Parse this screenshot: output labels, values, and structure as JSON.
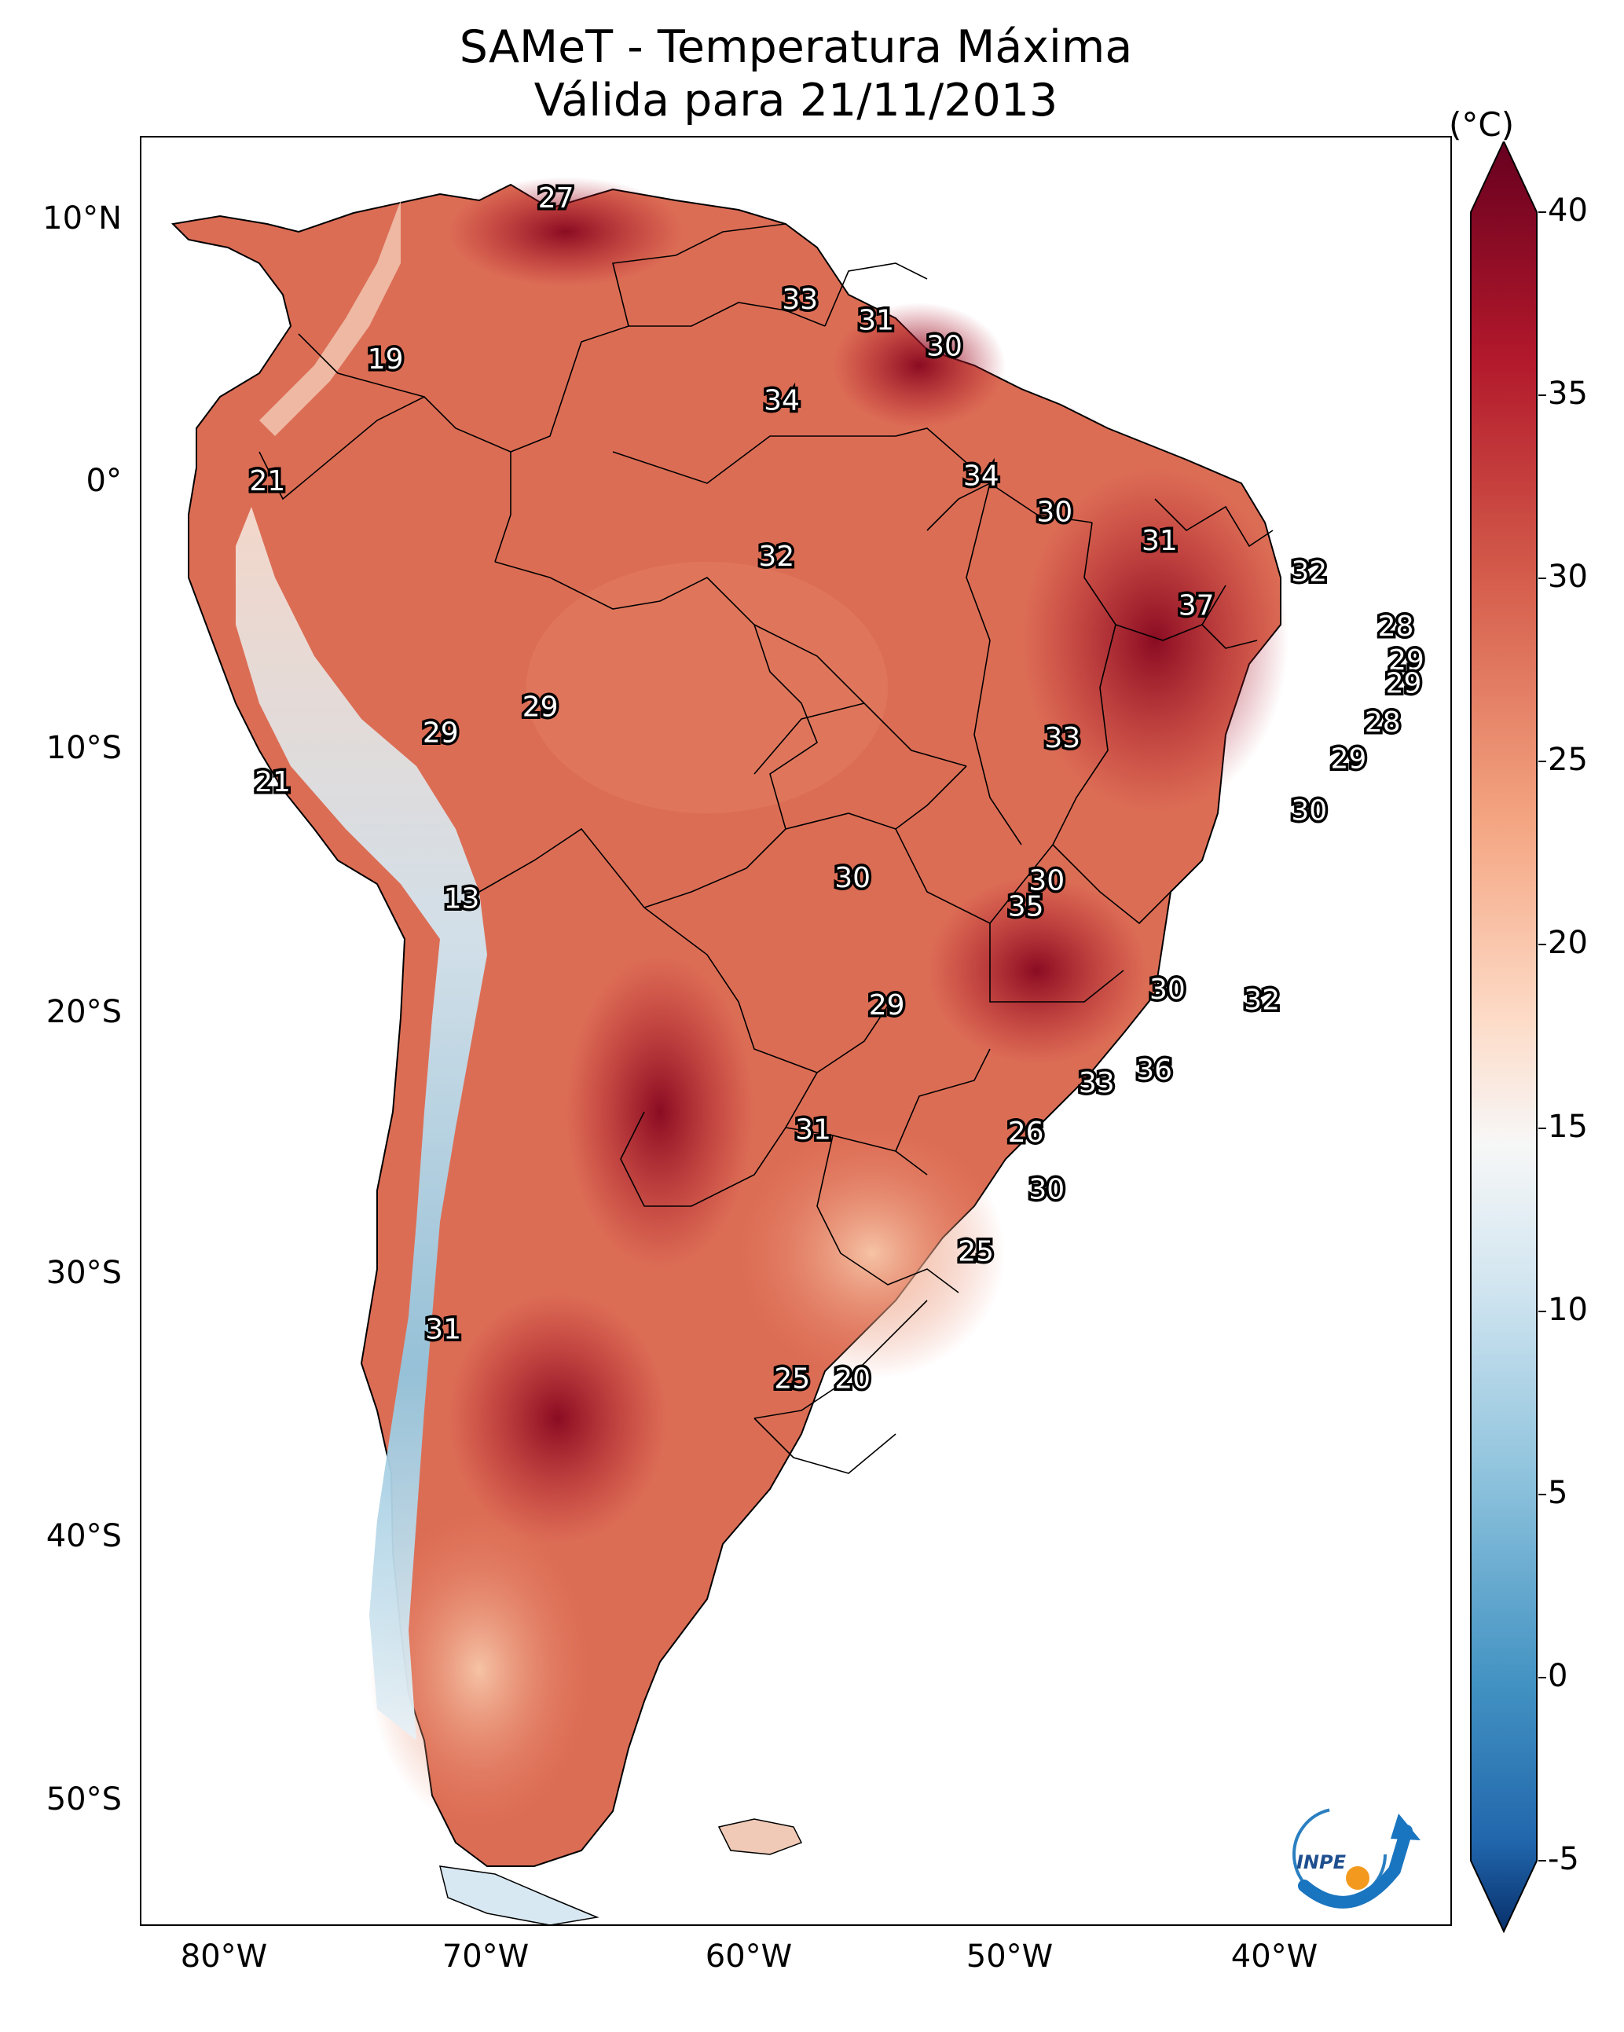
{
  "title": "SAMeT - Temperatura Máxima",
  "subtitle": "Válida para 21/11/2013",
  "colorbar": {
    "unit": "(°C)",
    "ticks": [
      "40",
      "35",
      "30",
      "25",
      "20",
      "15",
      "10",
      "5",
      "0",
      "-5"
    ],
    "min": -7,
    "max": 42,
    "colors": {
      "cold": "#08306b",
      "cool": "#4393c3",
      "neutral": "#f7f7f7",
      "warm": "#f4a582",
      "hot": "#b2182b",
      "hottest": "#67001f"
    }
  },
  "axes": {
    "lat_ticks": [
      "10°N",
      "0°",
      "10°S",
      "20°S",
      "30°S",
      "40°S",
      "50°S"
    ],
    "lon_ticks": [
      "80°W",
      "70°W",
      "60°W",
      "50°W",
      "40°W"
    ],
    "lon_range": [
      -83,
      -33
    ],
    "lat_range": [
      -56,
      13
    ]
  },
  "logo_text": "INPE",
  "station_labels": [
    {
      "lon": -67.2,
      "lat": 10.6,
      "value": 27
    },
    {
      "lon": -57.9,
      "lat": 6.7,
      "value": 33
    },
    {
      "lon": -55.0,
      "lat": 5.9,
      "value": 31
    },
    {
      "lon": -52.4,
      "lat": 4.9,
      "value": 30
    },
    {
      "lon": -58.6,
      "lat": 2.8,
      "value": 34
    },
    {
      "lon": -73.7,
      "lat": 4.4,
      "value": 19
    },
    {
      "lon": -78.2,
      "lat": -0.3,
      "value": 21
    },
    {
      "lon": -51.0,
      "lat": -0.1,
      "value": 34
    },
    {
      "lon": -48.2,
      "lat": -1.5,
      "value": 30
    },
    {
      "lon": -58.8,
      "lat": -3.2,
      "value": 32
    },
    {
      "lon": -44.2,
      "lat": -2.6,
      "value": 31
    },
    {
      "lon": -38.5,
      "lat": -3.8,
      "value": 32
    },
    {
      "lon": -42.8,
      "lat": -5.1,
      "value": 37
    },
    {
      "lon": -35.2,
      "lat": -5.9,
      "value": 28
    },
    {
      "lon": -34.8,
      "lat": -7.2,
      "value": 29
    },
    {
      "lon": -34.9,
      "lat": -8.1,
      "value": 29
    },
    {
      "lon": -67.8,
      "lat": -9.0,
      "value": 29
    },
    {
      "lon": -71.6,
      "lat": -10.0,
      "value": 29
    },
    {
      "lon": -35.7,
      "lat": -9.6,
      "value": 28
    },
    {
      "lon": -37.0,
      "lat": -11.0,
      "value": 29
    },
    {
      "lon": -47.9,
      "lat": -10.2,
      "value": 33
    },
    {
      "lon": -78.0,
      "lat": -11.9,
      "value": 21
    },
    {
      "lon": -38.5,
      "lat": -13.0,
      "value": 30
    },
    {
      "lon": -55.9,
      "lat": -15.6,
      "value": 30
    },
    {
      "lon": -48.5,
      "lat": -15.7,
      "value": 30
    },
    {
      "lon": -49.3,
      "lat": -16.7,
      "value": 35
    },
    {
      "lon": -70.8,
      "lat": -16.4,
      "value": 13
    },
    {
      "lon": -54.6,
      "lat": -20.5,
      "value": 29
    },
    {
      "lon": -43.9,
      "lat": -19.9,
      "value": 30
    },
    {
      "lon": -40.3,
      "lat": -20.3,
      "value": 32
    },
    {
      "lon": -44.4,
      "lat": -23.0,
      "value": 36
    },
    {
      "lon": -46.6,
      "lat": -23.5,
      "value": 33
    },
    {
      "lon": -57.4,
      "lat": -25.3,
      "value": 31
    },
    {
      "lon": -49.3,
      "lat": -25.4,
      "value": 26
    },
    {
      "lon": -48.5,
      "lat": -27.6,
      "value": 30
    },
    {
      "lon": -51.2,
      "lat": -30.0,
      "value": 25
    },
    {
      "lon": -71.5,
      "lat": -33.0,
      "value": 31
    },
    {
      "lon": -58.2,
      "lat": -34.9,
      "value": 25
    },
    {
      "lon": -55.9,
      "lat": -34.9,
      "value": 20
    }
  ]
}
